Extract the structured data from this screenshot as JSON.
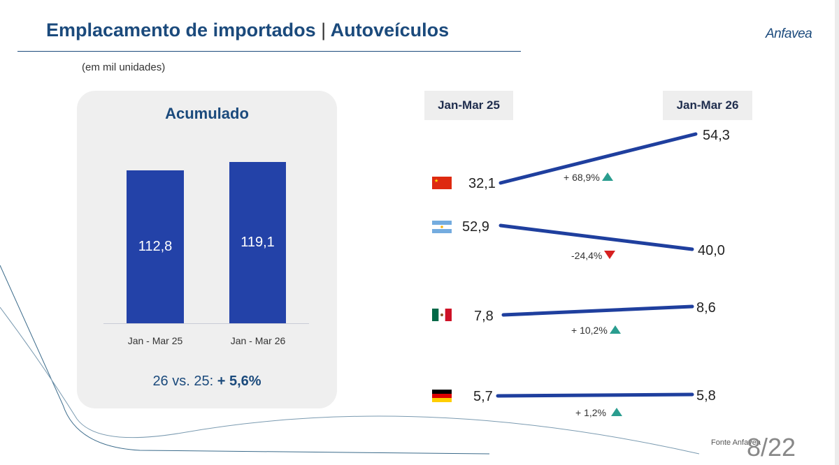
{
  "header": {
    "title_main": "Emplacamento de importados",
    "title_sep": "|",
    "title_sub": "Autoveículos",
    "logo": "Anfavea",
    "subtitle": "(em mil unidades)"
  },
  "card": {
    "title": "Acumulado",
    "bars": [
      {
        "label": "Jan - Mar 25",
        "value": "112,8"
      },
      {
        "label": "Jan - Mar 26",
        "value": "119,1"
      }
    ],
    "summary_prefix": "26 vs. 25:",
    "summary_value": "+ 5,6%"
  },
  "comparison": {
    "header_left": "Jan-Mar 25",
    "header_right": "Jan-Mar 26",
    "rows": [
      {
        "country": "China",
        "from": "32,1",
        "to": "54,3",
        "change": "+ 68,9%",
        "direction": "up"
      },
      {
        "country": "Argentina",
        "from": "52,9",
        "to": "40,0",
        "change": "-24,4%",
        "direction": "down"
      },
      {
        "country": "Mexico",
        "from": "7,8",
        "to": "8,6",
        "change": "+ 10,2%",
        "direction": "up"
      },
      {
        "country": "Germany",
        "from": "5,7",
        "to": "5,8",
        "change": "+ 1,2%",
        "direction": "up"
      }
    ]
  },
  "footer": {
    "source": "Fonte Anfavea",
    "page": "8/22"
  },
  "colors": {
    "bar": "#2342a8",
    "title": "#1b4a7c",
    "up": "#2a9d8f",
    "down": "#d62020"
  }
}
